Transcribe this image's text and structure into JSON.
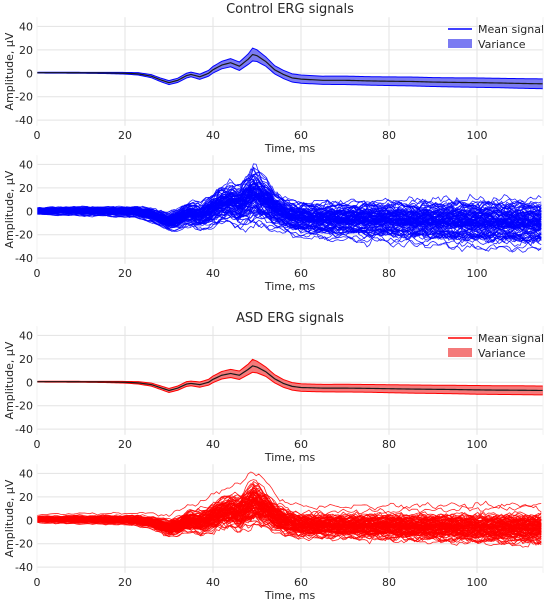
{
  "figure": {
    "colors": {
      "control": "#0000ff",
      "control_band": "#7b7bf2",
      "asd": "#ff0000",
      "asd_band": "#f47a7a",
      "mean_line": "#1a1a1a",
      "grid": "#e3e3e3",
      "background": "#ffffff"
    }
  },
  "chart_data": [
    {
      "type": "area",
      "group": "control",
      "title": "Control ERG signals",
      "xlabel": "Time, ms",
      "ylabel": "Amplitude, μV",
      "xlim": [
        0,
        115
      ],
      "ylim": [
        -45,
        48
      ],
      "xticks": [
        0,
        20,
        40,
        60,
        80,
        100
      ],
      "yticks": [
        -40,
        -20,
        0,
        20,
        40
      ],
      "grid": true,
      "legend": {
        "placement": "top-right",
        "entries": [
          "Mean signal",
          "Variance"
        ]
      },
      "series": [
        {
          "name": "Mean signal",
          "kind": "line"
        },
        {
          "name": "Variance",
          "kind": "band"
        }
      ],
      "x": [
        0,
        5,
        10,
        15,
        20,
        23,
        26,
        28,
        30,
        32,
        34,
        35,
        37,
        39,
        40,
        42,
        44,
        46,
        48,
        49,
        50,
        52,
        54,
        56,
        58,
        60,
        65,
        70,
        75,
        80,
        85,
        90,
        95,
        100,
        105,
        110,
        115
      ],
      "mean": [
        0.5,
        0.5,
        0.4,
        0.3,
        0,
        -0.5,
        -2.5,
        -5.5,
        -8,
        -6,
        -2,
        -1,
        -3,
        0,
        3,
        7,
        9,
        6,
        12,
        16,
        15,
        10,
        3,
        -1,
        -4,
        -5,
        -6,
        -6,
        -6.5,
        -6.8,
        -7,
        -7.5,
        -7.8,
        -8,
        -8.3,
        -8.7,
        -9
      ],
      "band_halfwidth": [
        0.3,
        0.4,
        0.4,
        0.5,
        0.7,
        1,
        1.3,
        1.5,
        1.7,
        1.8,
        2,
        2,
        2.2,
        2.5,
        2.8,
        3.2,
        3.5,
        3.6,
        4.5,
        5.5,
        5,
        4,
        3.5,
        3.5,
        3.5,
        3.5,
        3.5,
        3.6,
        3.6,
        3.7,
        3.8,
        3.8,
        3.9,
        4,
        4,
        4.1,
        4.2
      ]
    },
    {
      "type": "line",
      "group": "control",
      "xlabel": "Time, ms",
      "ylabel": "Amplitude, μV",
      "xlim": [
        0,
        115
      ],
      "ylim": [
        -45,
        48
      ],
      "xticks": [
        0,
        20,
        40,
        60,
        80,
        100
      ],
      "yticks": [
        -40,
        -20,
        0,
        20,
        40
      ],
      "grid": true,
      "individual_traces": 100,
      "x": [
        0,
        5,
        10,
        15,
        20,
        23,
        26,
        28,
        30,
        32,
        34,
        35,
        37,
        39,
        40,
        42,
        44,
        46,
        48,
        49,
        50,
        52,
        54,
        56,
        58,
        60,
        65,
        70,
        75,
        80,
        85,
        90,
        95,
        100,
        105,
        110,
        115
      ],
      "mean": [
        0.5,
        0.5,
        0.4,
        0.3,
        0,
        -0.5,
        -2.5,
        -5.5,
        -8,
        -6,
        -2,
        -1,
        -3,
        0,
        3,
        7,
        9,
        6,
        12,
        16,
        15,
        10,
        3,
        -1,
        -4,
        -5,
        -6,
        -6,
        -6.5,
        -6.8,
        -7,
        -7.5,
        -7.8,
        -8,
        -8.3,
        -8.7,
        -9
      ],
      "trace_spread": [
        1.5,
        1.8,
        2,
        2,
        2.2,
        2.5,
        3,
        3.5,
        4,
        4.5,
        5,
        5.5,
        6,
        6.5,
        7,
        8,
        8.5,
        9,
        11,
        13,
        12,
        10,
        8,
        7,
        7,
        7,
        7.5,
        7.5,
        8,
        8,
        8.5,
        8.5,
        9,
        9,
        9,
        9,
        9
      ],
      "ylabel_align": "left"
    },
    {
      "type": "area",
      "group": "asd",
      "title": "ASD ERG signals",
      "xlabel": "Time, ms",
      "ylabel": "Amplitude, μV",
      "xlim": [
        0,
        115
      ],
      "ylim": [
        -45,
        48
      ],
      "xticks": [
        0,
        20,
        40,
        60,
        80,
        100
      ],
      "yticks": [
        -40,
        -20,
        0,
        20,
        40
      ],
      "grid": true,
      "legend": {
        "placement": "top-right",
        "entries": [
          "Mean signal",
          "Variance"
        ]
      },
      "series": [
        {
          "name": "Mean signal",
          "kind": "line"
        },
        {
          "name": "Variance",
          "kind": "band"
        }
      ],
      "x": [
        0,
        5,
        10,
        15,
        20,
        23,
        26,
        28,
        30,
        32,
        34,
        35,
        37,
        39,
        40,
        42,
        44,
        46,
        48,
        49,
        50,
        52,
        54,
        56,
        58,
        60,
        65,
        70,
        75,
        80,
        85,
        90,
        95,
        100,
        105,
        110,
        115
      ],
      "mean": [
        0.5,
        0.5,
        0.4,
        0.3,
        0,
        -0.5,
        -2,
        -4.5,
        -7,
        -5,
        -1.5,
        -1,
        -2,
        0,
        2.5,
        6,
        7.5,
        6,
        11,
        14,
        13,
        9,
        3,
        -1,
        -3.5,
        -4.5,
        -5,
        -5,
        -5.2,
        -5.5,
        -5.8,
        -6,
        -6.2,
        -6.5,
        -6.7,
        -6.8,
        -7
      ],
      "band_halfwidth": [
        0.3,
        0.4,
        0.4,
        0.5,
        0.7,
        1,
        1.3,
        1.5,
        1.7,
        1.8,
        2,
        2,
        2.2,
        2.5,
        2.8,
        3.2,
        3.5,
        3.6,
        4.5,
        5.5,
        5,
        4,
        3.5,
        3.3,
        3.2,
        3.2,
        3.2,
        3.3,
        3.3,
        3.4,
        3.5,
        3.5,
        3.6,
        3.7,
        3.7,
        3.8,
        3.8
      ]
    },
    {
      "type": "line",
      "group": "asd",
      "xlabel": "Time, ms",
      "ylabel": "Amplitude, μV",
      "xlim": [
        0,
        115
      ],
      "ylim": [
        -45,
        48
      ],
      "xticks": [
        0,
        20,
        40,
        60,
        80,
        100
      ],
      "yticks": [
        -40,
        -20,
        0,
        20,
        40
      ],
      "grid": true,
      "individual_traces": 100,
      "x": [
        0,
        5,
        10,
        15,
        20,
        23,
        26,
        28,
        30,
        32,
        34,
        35,
        37,
        39,
        40,
        42,
        44,
        46,
        48,
        49,
        50,
        52,
        54,
        56,
        58,
        60,
        65,
        70,
        75,
        80,
        85,
        90,
        95,
        100,
        105,
        110,
        115
      ],
      "mean": [
        0.5,
        0.5,
        0.4,
        0.3,
        0,
        -0.5,
        -2,
        -4.5,
        -7,
        -5,
        -1.5,
        -1,
        -2,
        0,
        2.5,
        6,
        7.5,
        6,
        11,
        14,
        13,
        9,
        3,
        -1,
        -3.5,
        -4.5,
        -5,
        -5,
        -5.2,
        -5.5,
        -5.8,
        -6,
        -6.2,
        -6.5,
        -6.7,
        -6.8,
        -7
      ],
      "trace_spread": [
        1.5,
        1.8,
        2,
        2,
        2.2,
        2.5,
        3,
        3.5,
        4,
        4.5,
        5,
        5.5,
        6,
        6.5,
        7,
        7.5,
        8,
        8.5,
        10,
        11,
        10,
        8.5,
        7,
        6.5,
        6,
        6,
        6,
        6,
        6.2,
        6.3,
        6.5,
        6.5,
        6.7,
        6.8,
        6.8,
        7,
        7
      ]
    }
  ]
}
